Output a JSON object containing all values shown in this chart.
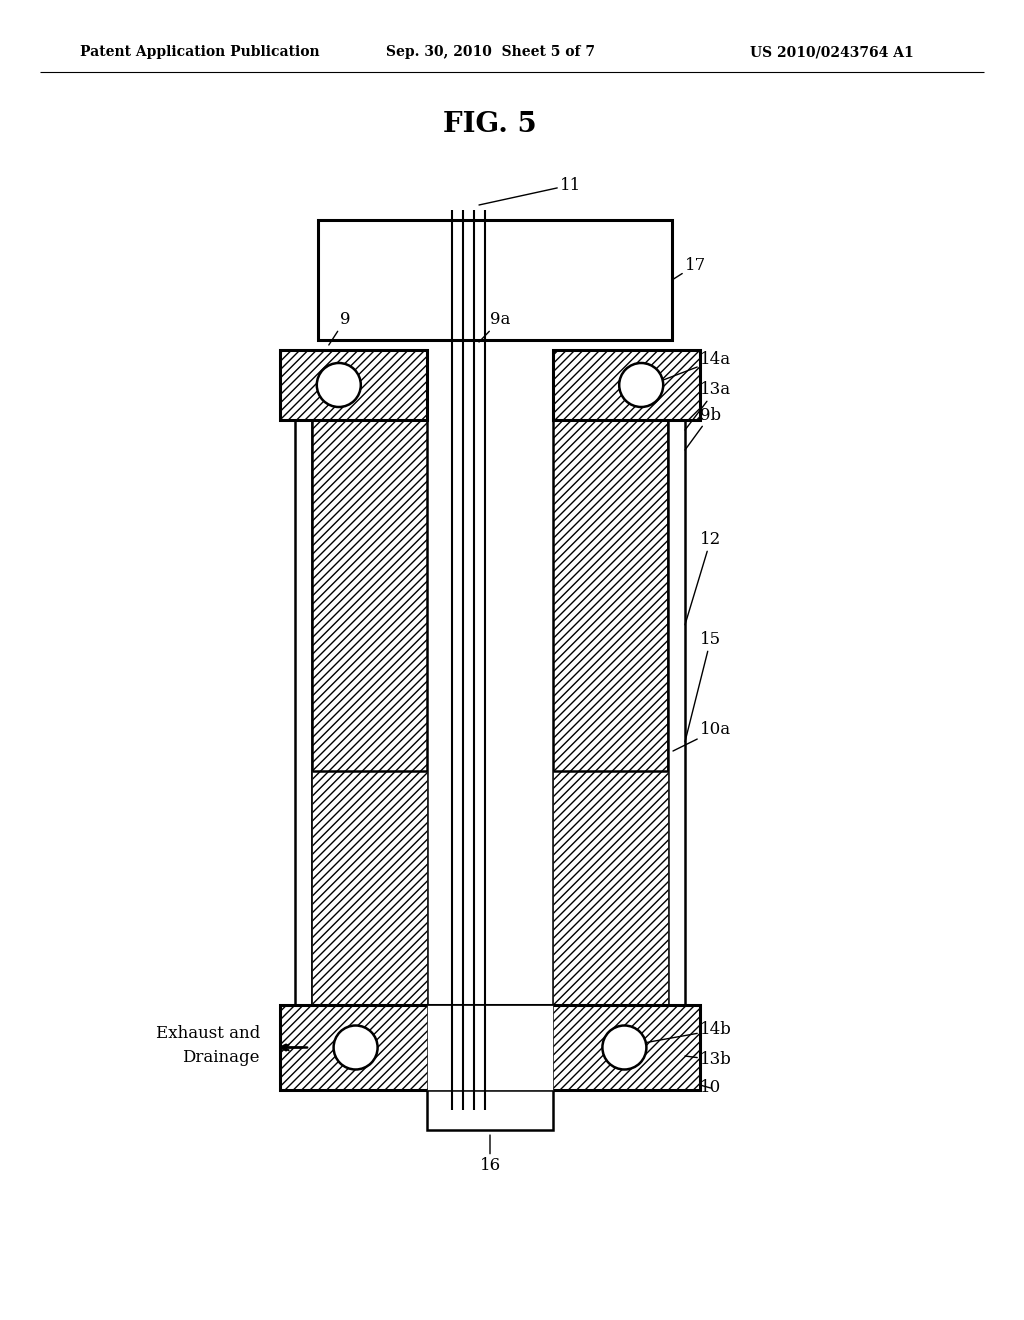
{
  "bg_color": "#ffffff",
  "line_color": "#000000",
  "title_text": "FIG. 5",
  "header_left": "Patent Application Publication",
  "header_center": "Sep. 30, 2010  Sheet 5 of 7",
  "header_right": "US 2010/0243764 A1"
}
